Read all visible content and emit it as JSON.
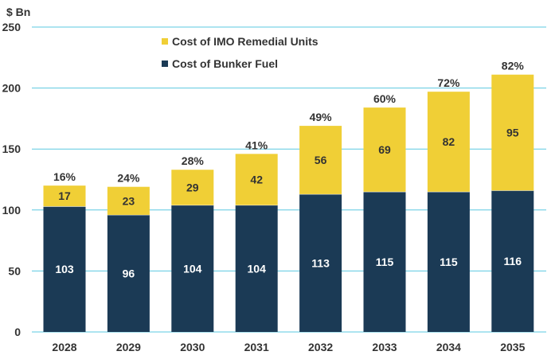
{
  "chart_data": {
    "type": "bar",
    "stacked": true,
    "unit_label": "$ Bn",
    "categories": [
      "2028",
      "2029",
      "2030",
      "2031",
      "2032",
      "2033",
      "2034",
      "2035"
    ],
    "series": [
      {
        "name": "Cost of Bunker Fuel",
        "color": "#1b3a55",
        "values": [
          103,
          96,
          104,
          104,
          113,
          115,
          115,
          116
        ]
      },
      {
        "name": "Cost of IMO Remedial Units",
        "color": "#f0cf36",
        "values": [
          17,
          23,
          29,
          42,
          56,
          69,
          82,
          95
        ]
      }
    ],
    "top_labels": [
      "16%",
      "24%",
      "28%",
      "41%",
      "49%",
      "60%",
      "72%",
      "82%"
    ],
    "ylim": [
      0,
      250
    ],
    "yticks": [
      0,
      50,
      100,
      150,
      200,
      250
    ],
    "grid": true,
    "legend_position": "top-center",
    "grid_color": "#5bc8e0"
  }
}
